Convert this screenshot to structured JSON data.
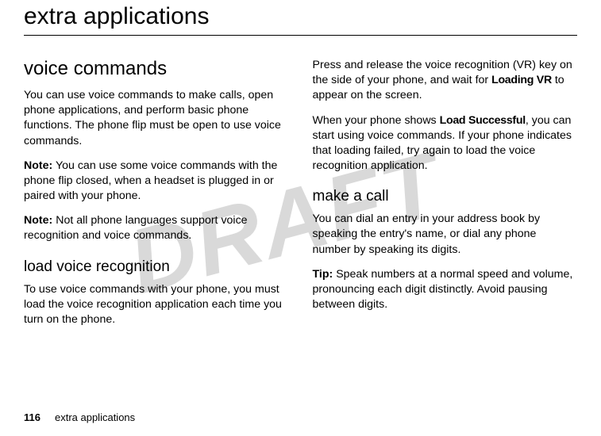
{
  "watermark": "DRAFT",
  "chapter_title": "extra applications",
  "footer": {
    "page_number": "116",
    "running_title": "extra applications"
  },
  "left": {
    "section_heading": "voice commands",
    "p1": "You can use voice commands to make calls, open phone applications, and perform basic phone functions. The phone flip must be open to use voice commands.",
    "note1_label": "Note:",
    "note1_text": " You can use some voice commands with the phone flip closed, when a headset is plugged in or paired with your phone.",
    "note2_label": "Note:",
    "note2_text": " Not all phone languages support voice recognition and voice commands.",
    "subsection_heading": "load voice recognition",
    "p2": "To use voice commands with your phone, you must load the voice recognition application each time you turn on the phone."
  },
  "right": {
    "p1a": "Press and release the voice recognition (VR) key on the side of your phone, and wait for ",
    "p1_bold": "Loading VR",
    "p1b": " to appear on the screen.",
    "p2a": "When your phone shows ",
    "p2_bold": "Load Successful",
    "p2b": ", you can start using voice commands. If your phone indicates that loading failed, try again to load the voice recognition application.",
    "subsection_heading": "make a call",
    "p3": "You can dial an entry in your address book by speaking the entry's name, or dial any phone number by speaking its digits.",
    "tip_label": "Tip:",
    "tip_text": " Speak numbers at a normal speed and volume, pronouncing each digit distinctly. Avoid pausing between digits."
  }
}
